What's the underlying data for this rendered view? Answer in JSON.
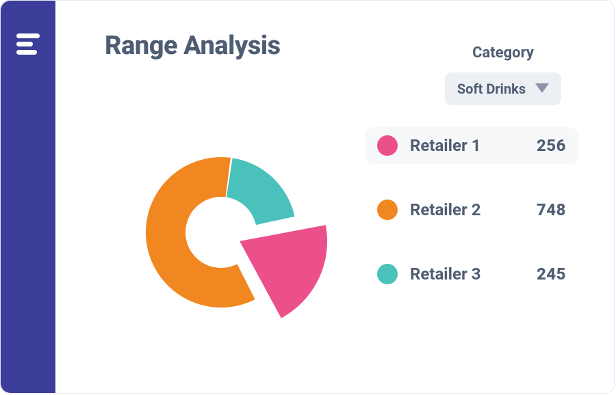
{
  "colors": {
    "sidebar_bg": "#3c3d99",
    "text": "#4f5d73",
    "dropdown_bg": "#eceff4",
    "highlight_bg": "#f7f8fa",
    "icon_white": "#ffffff",
    "card_border": "#e6e8ee"
  },
  "header": {
    "title": "Range Analysis"
  },
  "filter": {
    "label": "Category",
    "selected": "Soft Drinks"
  },
  "chart": {
    "type": "pie",
    "inner_radius": 52,
    "outer_radius": 110,
    "exploded_slice_offset": 30,
    "exploded_slice_inner_radius": 0,
    "exploded_slice_outer_radius": 128,
    "background_color": "#ffffff",
    "gap_deg": 1.5,
    "series": [
      {
        "id": "retailer1",
        "label": "Retailer 1",
        "value": 256,
        "color": "#ec508b",
        "exploded": true,
        "highlighted": true
      },
      {
        "id": "retailer2",
        "label": "Retailer 2",
        "value": 748,
        "color": "#f08721",
        "exploded": false,
        "highlighted": false
      },
      {
        "id": "retailer3",
        "label": "Retailer 3",
        "value": 245,
        "color": "#4ac1bb",
        "exploded": false,
        "highlighted": false
      }
    ],
    "legend": {
      "dot_radius": 15,
      "label_fontsize": 24,
      "value_fontsize": 24
    },
    "title_fontsize": 38
  }
}
